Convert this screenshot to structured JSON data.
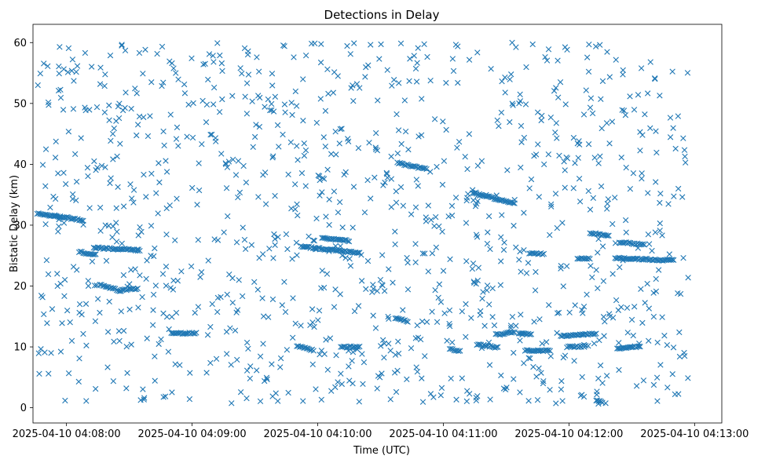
{
  "chart_data": {
    "type": "scatter",
    "title": "Detections in Delay",
    "xlabel": "Time (UTC)",
    "ylabel": "Bistatic Delay (km)",
    "marker": "x",
    "color": "#1f77b4",
    "xlim_seconds": [
      -16,
      313
    ],
    "ylim": [
      -2.5,
      63
    ],
    "x_ticks": [
      {
        "t": 0,
        "label": "2025-04-10 04:08:00"
      },
      {
        "t": 60,
        "label": "2025-04-10 04:09:00"
      },
      {
        "t": 120,
        "label": "2025-04-10 04:10:00"
      },
      {
        "t": 180,
        "label": "2025-04-10 04:11:00"
      },
      {
        "t": 240,
        "label": "2025-04-10 04:12:00"
      },
      {
        "t": 300,
        "label": "2025-04-10 04:13:00"
      }
    ],
    "y_ticks": [
      0,
      10,
      20,
      30,
      40,
      50,
      60
    ],
    "time_origin": "2025-04-10 04:08:00",
    "time_range_seconds": [
      -14,
      297
    ],
    "delay_range_km": [
      0.5,
      60
    ],
    "tracks": [
      {
        "t": [
          -14,
          -3
        ],
        "y": [
          31.9,
          31.4
        ]
      },
      {
        "t": [
          -3,
          8
        ],
        "y": [
          31.4,
          30.8
        ]
      },
      {
        "t": [
          6,
          14
        ],
        "y": [
          25.6,
          25.1
        ]
      },
      {
        "t": [
          13,
          35
        ],
        "y": [
          26.3,
          25.9
        ]
      },
      {
        "t": [
          16,
          26
        ],
        "y": [
          20.2,
          19.2
        ]
      },
      {
        "t": [
          26,
          34
        ],
        "y": [
          19.3,
          19.6
        ]
      },
      {
        "t": [
          50,
          62
        ],
        "y": [
          12.2,
          12.3
        ]
      },
      {
        "t": [
          112,
          140
        ],
        "y": [
          26.5,
          25.4
        ]
      },
      {
        "t": [
          122,
          135
        ],
        "y": [
          27.9,
          27.4
        ]
      },
      {
        "t": [
          110,
          118
        ],
        "y": [
          10.2,
          9.4
        ]
      },
      {
        "t": [
          131,
          140
        ],
        "y": [
          10.0,
          10.0
        ]
      },
      {
        "t": [
          158,
          172
        ],
        "y": [
          40.2,
          39.2
        ]
      },
      {
        "t": [
          157,
          163
        ],
        "y": [
          14.8,
          14.2
        ]
      },
      {
        "t": [
          183,
          188
        ],
        "y": [
          9.6,
          9.4
        ]
      },
      {
        "t": [
          194,
          214
        ],
        "y": [
          35.3,
          33.6
        ]
      },
      {
        "t": [
          196,
          206
        ],
        "y": [
          10.4,
          9.9
        ]
      },
      {
        "t": [
          205,
          214
        ],
        "y": [
          12.0,
          12.4
        ]
      },
      {
        "t": [
          216,
          222
        ],
        "y": [
          12.3,
          12.1
        ]
      },
      {
        "t": [
          221,
          228
        ],
        "y": [
          25.3,
          25.3
        ]
      },
      {
        "t": [
          219,
          231
        ],
        "y": [
          9.4,
          9.4
        ]
      },
      {
        "t": [
          236,
          253
        ],
        "y": [
          11.8,
          12.2
        ]
      },
      {
        "t": [
          239,
          248
        ],
        "y": [
          10.0,
          10.1
        ]
      },
      {
        "t": [
          244,
          250
        ],
        "y": [
          24.5,
          24.5
        ]
      },
      {
        "t": [
          250,
          259
        ],
        "y": [
          28.7,
          28.3
        ]
      },
      {
        "t": [
          264,
          276
        ],
        "y": [
          27.2,
          26.8
        ]
      },
      {
        "t": [
          262,
          290
        ],
        "y": [
          24.6,
          24.2
        ]
      },
      {
        "t": [
          263,
          274
        ],
        "y": [
          9.7,
          10.1
        ]
      },
      {
        "t": [
          253,
          256
        ],
        "y": [
          1.2,
          0.9
        ]
      }
    ],
    "background_points": 1100
  }
}
